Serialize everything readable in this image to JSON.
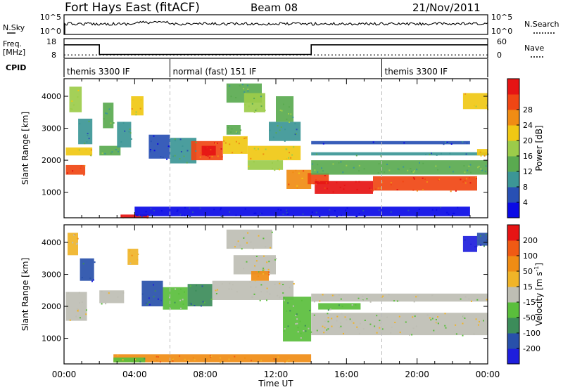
{
  "header": {
    "radar": "Fort Hays East (fitACF)",
    "beam": "Beam 08",
    "date": "21/Nov/2011"
  },
  "noise_panel": {
    "left_label": "N.Sky",
    "right_label": "N.Search",
    "left_ticks": [
      "10^5",
      "10^0"
    ],
    "right_ticks": [
      "10^5",
      "10^0"
    ]
  },
  "freq_panel": {
    "left_label": "Freq.",
    "left_unit": "[MHz]",
    "right_label": "Nave",
    "left_ticks": [
      "18",
      "8"
    ],
    "right_ticks": [
      "60",
      "0"
    ],
    "freq_steps": [
      {
        "t0": 0.0,
        "t1": 2.0,
        "freq": 16
      },
      {
        "t0": 2.0,
        "t1": 14.0,
        "freq": 10.3
      },
      {
        "t0": 14.0,
        "t1": 24.0,
        "freq": 16
      }
    ],
    "nave_level": 12
  },
  "cpid_panel": {
    "label": "CPID",
    "segments": [
      {
        "start": 0.0,
        "end": 6.0,
        "name": "themis 3300 IF"
      },
      {
        "start": 6.0,
        "end": 18.0,
        "name": "normal (fast) 151 IF"
      },
      {
        "start": 18.0,
        "end": 24.0,
        "name": "themis 3300 IF"
      }
    ]
  },
  "chart_data": [
    {
      "type": "heatmap",
      "title": "Power",
      "ylabel": "Slant Range [km]",
      "xlim": [
        0,
        24
      ],
      "ylim": [
        200,
        4550
      ],
      "yticks": [
        "1000",
        "2000",
        "3000",
        "4000"
      ],
      "colorbar_label": "Power [dB]",
      "colorbar_ticks": [
        "4",
        "8",
        "12",
        "16",
        "20",
        "24",
        "28"
      ],
      "colors": [
        "#0a0ae6",
        "#2850b4",
        "#3c9696",
        "#5aaa50",
        "#9ccc4a",
        "#f0c814",
        "#f08c14",
        "#f04614",
        "#e61414"
      ],
      "regions": [
        {
          "t0": 0.1,
          "t1": 1.2,
          "r0": 1550,
          "r1": 1850,
          "level": 7
        },
        {
          "t0": 0.1,
          "t1": 1.6,
          "r0": 2150,
          "r1": 2400,
          "level": 5
        },
        {
          "t0": 0.3,
          "t1": 1.0,
          "r0": 3500,
          "r1": 4300,
          "level": 4
        },
        {
          "t0": 0.8,
          "t1": 1.6,
          "r0": 2500,
          "r1": 3300,
          "level": 2
        },
        {
          "t0": 2.0,
          "t1": 3.2,
          "r0": 2150,
          "r1": 2450,
          "level": 3
        },
        {
          "t0": 2.2,
          "t1": 2.8,
          "r0": 3000,
          "r1": 3800,
          "level": 3
        },
        {
          "t0": 3.0,
          "t1": 3.8,
          "r0": 2400,
          "r1": 3200,
          "level": 2
        },
        {
          "t0": 3.8,
          "t1": 4.5,
          "r0": 3400,
          "r1": 4000,
          "level": 5
        },
        {
          "t0": 4.8,
          "t1": 6.0,
          "r0": 2050,
          "r1": 2800,
          "level": 1
        },
        {
          "t0": 6.0,
          "t1": 7.5,
          "r0": 1900,
          "r1": 2700,
          "level": 2
        },
        {
          "t0": 7.2,
          "t1": 9.0,
          "r0": 2000,
          "r1": 2600,
          "level": 7
        },
        {
          "t0": 7.8,
          "t1": 8.6,
          "r0": 2150,
          "r1": 2450,
          "level": 8
        },
        {
          "t0": 9.0,
          "t1": 10.4,
          "r0": 2200,
          "r1": 2750,
          "level": 5
        },
        {
          "t0": 9.2,
          "t1": 10.0,
          "r0": 2800,
          "r1": 3100,
          "level": 3
        },
        {
          "t0": 9.2,
          "t1": 11.2,
          "r0": 3800,
          "r1": 4400,
          "level": 3
        },
        {
          "t0": 10.2,
          "t1": 11.4,
          "r0": 3500,
          "r1": 4100,
          "level": 4
        },
        {
          "t0": 10.4,
          "t1": 13.4,
          "r0": 2000,
          "r1": 2450,
          "level": 5
        },
        {
          "t0": 10.4,
          "t1": 12.4,
          "r0": 1700,
          "r1": 2000,
          "level": 4
        },
        {
          "t0": 11.6,
          "t1": 13.4,
          "r0": 2600,
          "r1": 3200,
          "level": 2
        },
        {
          "t0": 12.0,
          "t1": 13.0,
          "r0": 3200,
          "r1": 4000,
          "level": 3
        },
        {
          "t0": 12.6,
          "t1": 14.0,
          "r0": 1100,
          "r1": 1700,
          "level": 6
        },
        {
          "t0": 13.8,
          "t1": 15.0,
          "r0": 1250,
          "r1": 1600,
          "level": 7
        },
        {
          "t0": 14.0,
          "t1": 24.0,
          "r0": 1550,
          "r1": 2000,
          "level": 3
        },
        {
          "t0": 14.2,
          "t1": 17.5,
          "r0": 950,
          "r1": 1350,
          "level": 8
        },
        {
          "t0": 17.5,
          "t1": 23.4,
          "r0": 1050,
          "r1": 1500,
          "level": 7
        },
        {
          "t0": 14.0,
          "t1": 24.0,
          "r0": 2150,
          "r1": 2250,
          "level": 2
        },
        {
          "t0": 14.0,
          "t1": 23.0,
          "r0": 2500,
          "r1": 2600,
          "level": 1
        },
        {
          "t0": 23.4,
          "t1": 24.0,
          "r0": 2150,
          "r1": 2350,
          "level": 5
        },
        {
          "t0": 22.6,
          "t1": 24.0,
          "r0": 3600,
          "r1": 4100,
          "level": 5
        },
        {
          "t0": 3.2,
          "t1": 4.8,
          "r0": 200,
          "r1": 300,
          "level": 8
        },
        {
          "t0": 4.0,
          "t1": 23.0,
          "r0": 250,
          "r1": 550,
          "level": 0
        }
      ]
    },
    {
      "type": "heatmap",
      "title": "Velocity",
      "ylabel": "Slant Range [km]",
      "xlabel": "Time UT",
      "xlim": [
        0,
        24
      ],
      "ylim": [
        200,
        4550
      ],
      "yticks": [
        "1000",
        "2000",
        "3000",
        "4000"
      ],
      "xticks": [
        "00:00",
        "04:00",
        "08:00",
        "12:00",
        "16:00",
        "20:00",
        "00:00"
      ],
      "colorbar_label": "Velocity [m s",
      "colorbar_unit_exp": "-1",
      "colorbar_ticks": [
        "200",
        "100",
        "50",
        "15",
        "-15",
        "-50",
        "-100",
        "-200"
      ],
      "colors": [
        "#1e1edc",
        "#2850aa",
        "#3c8c5a",
        "#5abe3c",
        "#bebeb4",
        "#f0b428",
        "#f08c14",
        "#f05a14",
        "#e61414"
      ],
      "regions": [
        {
          "t0": 0.1,
          "t1": 1.3,
          "r0": 1550,
          "r1": 2450,
          "level": 4
        },
        {
          "t0": 0.9,
          "t1": 1.7,
          "r0": 2800,
          "r1": 3500,
          "level": 1
        },
        {
          "t0": 0.2,
          "t1": 0.8,
          "r0": 3600,
          "r1": 4300,
          "level": 5
        },
        {
          "t0": 2.0,
          "t1": 3.4,
          "r0": 2100,
          "r1": 2500,
          "level": 4
        },
        {
          "t0": 3.6,
          "t1": 4.2,
          "r0": 3300,
          "r1": 3800,
          "level": 5
        },
        {
          "t0": 4.4,
          "t1": 5.6,
          "r0": 2000,
          "r1": 2800,
          "level": 1
        },
        {
          "t0": 5.6,
          "t1": 7.0,
          "r0": 1900,
          "r1": 2600,
          "level": 3
        },
        {
          "t0": 7.0,
          "t1": 8.4,
          "r0": 2000,
          "r1": 2700,
          "level": 2
        },
        {
          "t0": 8.4,
          "t1": 13.0,
          "r0": 2200,
          "r1": 2800,
          "level": 4
        },
        {
          "t0": 9.6,
          "t1": 12.0,
          "r0": 3000,
          "r1": 3600,
          "level": 4
        },
        {
          "t0": 10.6,
          "t1": 11.6,
          "r0": 2800,
          "r1": 3100,
          "level": 6
        },
        {
          "t0": 9.2,
          "t1": 11.8,
          "r0": 3800,
          "r1": 4400,
          "level": 4
        },
        {
          "t0": 12.4,
          "t1": 14.0,
          "r0": 900,
          "r1": 2300,
          "level": 3
        },
        {
          "t0": 14.4,
          "t1": 16.8,
          "r0": 1900,
          "r1": 2100,
          "level": 3
        },
        {
          "t0": 14.0,
          "t1": 24.0,
          "r0": 1100,
          "r1": 1800,
          "level": 4
        },
        {
          "t0": 14.0,
          "t1": 24.0,
          "r0": 2150,
          "r1": 2400,
          "level": 4
        },
        {
          "t0": 22.6,
          "t1": 23.4,
          "r0": 3700,
          "r1": 4200,
          "level": 0
        },
        {
          "t0": 23.4,
          "t1": 24.0,
          "r0": 3900,
          "r1": 4300,
          "level": 1
        },
        {
          "t0": 2.8,
          "t1": 14.0,
          "r0": 250,
          "r1": 500,
          "level": 6
        },
        {
          "t0": 2.8,
          "t1": 4.6,
          "r0": 250,
          "r1": 400,
          "level": 3
        }
      ]
    }
  ]
}
